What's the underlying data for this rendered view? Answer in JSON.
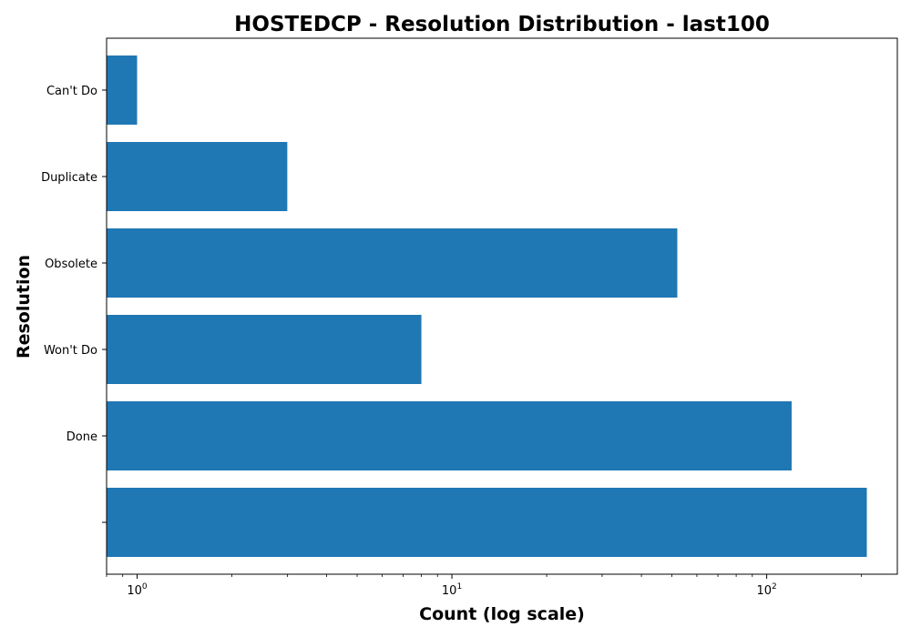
{
  "chart_data": {
    "type": "bar",
    "orientation": "horizontal",
    "title": "HOSTEDCP - Resolution Distribution - last100",
    "xlabel": "Count (log scale)",
    "ylabel": "Resolution",
    "x_scale": "log",
    "xlim": [
      0.8,
      260
    ],
    "x_ticks": [
      {
        "value": 1,
        "base": "10",
        "exp": "0"
      },
      {
        "value": 10,
        "base": "10",
        "exp": "1"
      },
      {
        "value": 100,
        "base": "10",
        "exp": "2"
      }
    ],
    "categories": [
      "",
      "Done",
      "Won't Do",
      "Obsolete",
      "Duplicate",
      "Can't Do"
    ],
    "values": [
      208,
      120,
      8,
      52,
      3,
      1
    ],
    "bar_color": "#1f77b4",
    "grid": false,
    "legend": "none"
  }
}
